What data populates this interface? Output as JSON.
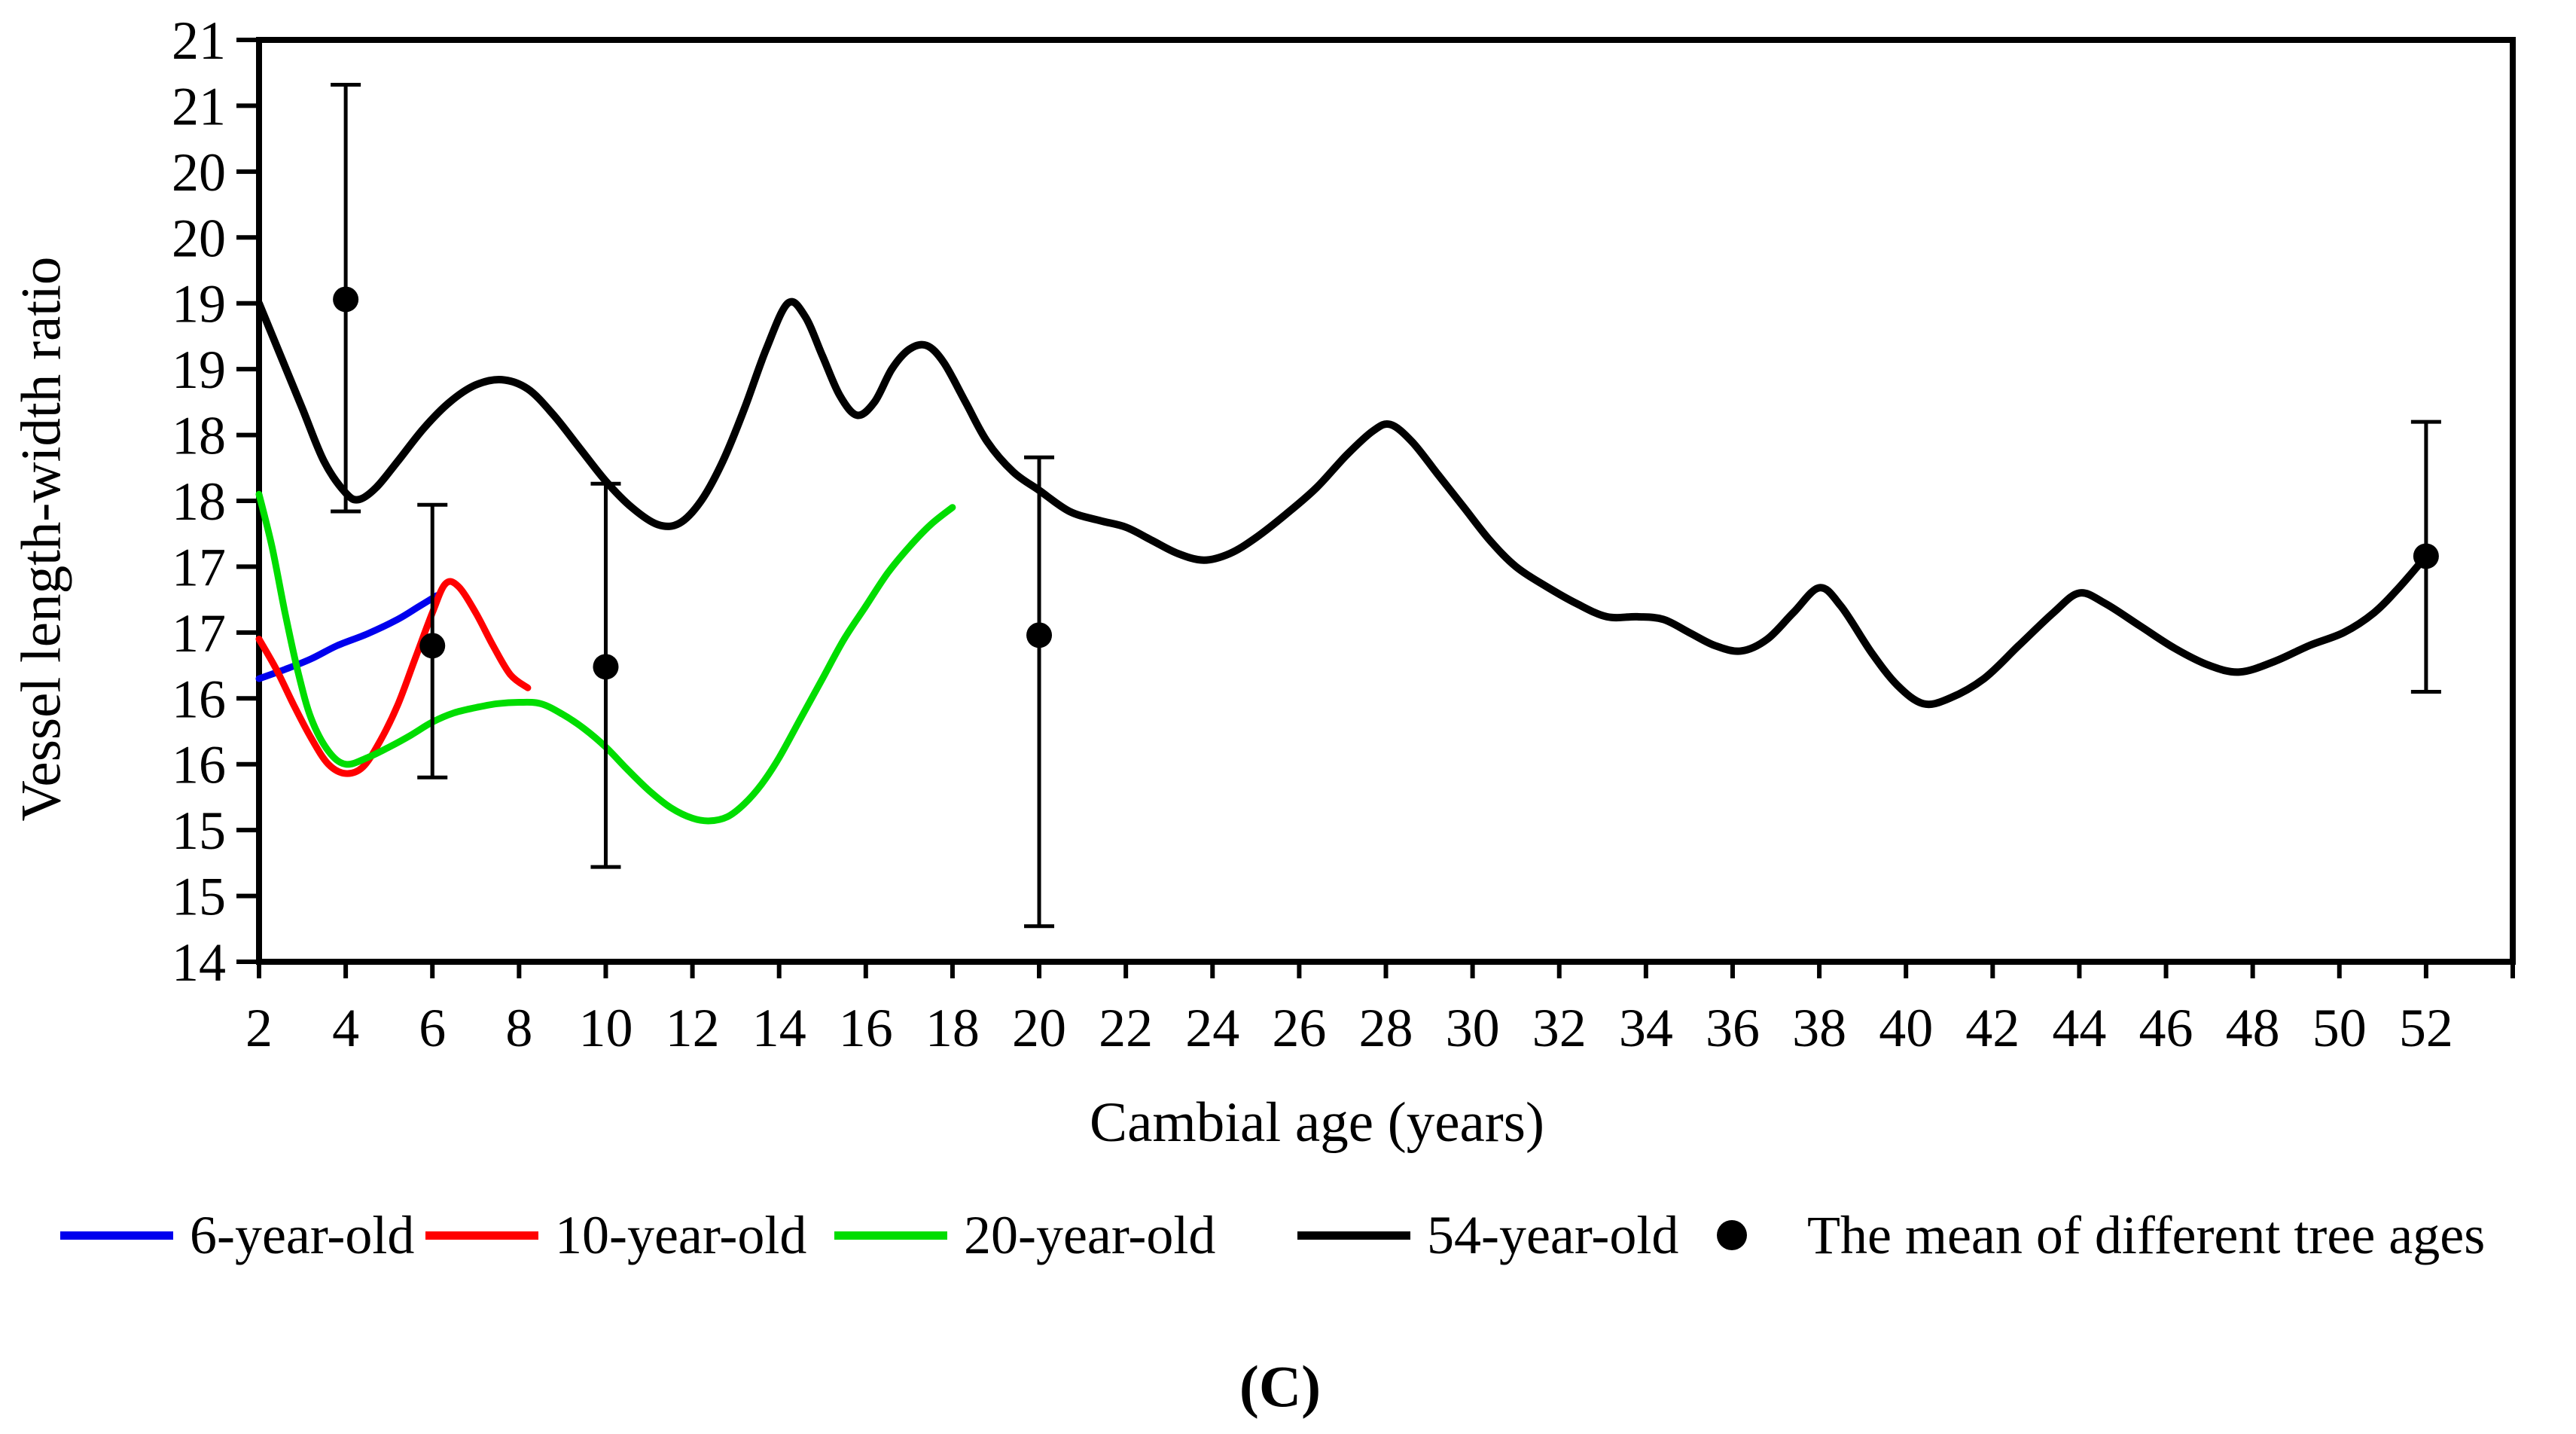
{
  "figure": {
    "caption": "(C)",
    "x_axis": {
      "title": "Cambial age (years)",
      "min": 2,
      "max": 54,
      "tick_interval": 2,
      "tick_labels": [
        "2",
        "4",
        "6",
        "8",
        "10",
        "12",
        "14",
        "16",
        "18",
        "20",
        "22",
        "24",
        "26",
        "28",
        "30",
        "32",
        "34",
        "36",
        "38",
        "40",
        "42",
        "44",
        "46",
        "48",
        "50",
        "52"
      ]
    },
    "y_axis": {
      "title": "Vessel length-width ratio",
      "min": 14,
      "max": 21,
      "tick_interval": 0.5,
      "tick_labels_top_to_bottom": [
        "21",
        "21",
        "20",
        "20",
        "19",
        "19",
        "18",
        "18",
        "17",
        "17",
        "16",
        "16",
        "15",
        "15",
        "14"
      ]
    },
    "legend": [
      {
        "label": "6-year-old",
        "color": "#0000ee",
        "marker": "line"
      },
      {
        "label": "10-year-old",
        "color": "#ff0000",
        "marker": "line"
      },
      {
        "label": "20-year-old",
        "color": "#00dd00",
        "marker": "line"
      },
      {
        "label": "54-year-old",
        "color": "#000000",
        "marker": "line"
      },
      {
        "label": "The mean of different tree ages",
        "color": "#000000",
        "marker": "dot"
      }
    ]
  },
  "colors": {
    "blue": "#0000ee",
    "red": "#ff0000",
    "green": "#00dd00",
    "black": "#000000",
    "background": "#ffffff"
  },
  "chart_data": {
    "type": "line",
    "title": "",
    "xlabel": "Cambial age (years)",
    "ylabel": "Vessel length-width ratio",
    "xlim": [
      2,
      54
    ],
    "ylim": [
      14,
      21
    ],
    "grid": false,
    "legend_position": "bottom",
    "series": [
      {
        "name": "6-year-old",
        "color": "#0000ee",
        "points": [
          [
            2,
            16.15
          ],
          [
            2.6,
            16.22
          ],
          [
            3.2,
            16.3
          ],
          [
            3.8,
            16.4
          ],
          [
            4.5,
            16.49
          ],
          [
            5.2,
            16.6
          ],
          [
            5.7,
            16.7
          ],
          [
            6.1,
            16.78
          ]
        ]
      },
      {
        "name": "10-year-old",
        "color": "#ff0000",
        "points": [
          [
            2,
            16.45
          ],
          [
            2.4,
            16.22
          ],
          [
            2.8,
            15.95
          ],
          [
            3.2,
            15.7
          ],
          [
            3.6,
            15.5
          ],
          [
            4,
            15.43
          ],
          [
            4.4,
            15.48
          ],
          [
            4.8,
            15.68
          ],
          [
            5.2,
            15.95
          ],
          [
            5.6,
            16.3
          ],
          [
            6,
            16.65
          ],
          [
            6.3,
            16.87
          ],
          [
            6.6,
            16.85
          ],
          [
            7,
            16.65
          ],
          [
            7.4,
            16.4
          ],
          [
            7.8,
            16.18
          ],
          [
            8.2,
            16.08
          ]
        ]
      },
      {
        "name": "20-year-old",
        "color": "#00dd00",
        "points": [
          [
            2,
            17.55
          ],
          [
            2.3,
            17.15
          ],
          [
            2.6,
            16.65
          ],
          [
            2.9,
            16.2
          ],
          [
            3.2,
            15.85
          ],
          [
            3.6,
            15.6
          ],
          [
            4,
            15.5
          ],
          [
            4.5,
            15.55
          ],
          [
            5,
            15.63
          ],
          [
            5.5,
            15.72
          ],
          [
            6,
            15.82
          ],
          [
            6.5,
            15.89
          ],
          [
            7,
            15.93
          ],
          [
            7.5,
            15.96
          ],
          [
            8,
            15.97
          ],
          [
            8.5,
            15.96
          ],
          [
            9,
            15.88
          ],
          [
            9.5,
            15.77
          ],
          [
            10,
            15.63
          ],
          [
            10.5,
            15.46
          ],
          [
            11,
            15.3
          ],
          [
            11.5,
            15.17
          ],
          [
            12,
            15.09
          ],
          [
            12.4,
            15.07
          ],
          [
            12.8,
            15.1
          ],
          [
            13.2,
            15.2
          ],
          [
            13.6,
            15.35
          ],
          [
            14,
            15.55
          ],
          [
            14.5,
            15.85
          ],
          [
            15,
            16.15
          ],
          [
            15.5,
            16.45
          ],
          [
            16,
            16.7
          ],
          [
            16.5,
            16.95
          ],
          [
            17,
            17.15
          ],
          [
            17.5,
            17.32
          ],
          [
            18,
            17.45
          ]
        ]
      },
      {
        "name": "54-year-old",
        "color": "#000000",
        "points": [
          [
            2,
            19.0
          ],
          [
            2.5,
            18.6
          ],
          [
            3,
            18.2
          ],
          [
            3.5,
            17.8
          ],
          [
            4,
            17.56
          ],
          [
            4.3,
            17.51
          ],
          [
            4.7,
            17.6
          ],
          [
            5.2,
            17.8
          ],
          [
            5.8,
            18.05
          ],
          [
            6.4,
            18.25
          ],
          [
            7,
            18.38
          ],
          [
            7.6,
            18.42
          ],
          [
            8.2,
            18.35
          ],
          [
            8.8,
            18.15
          ],
          [
            9.4,
            17.9
          ],
          [
            10,
            17.65
          ],
          [
            10.6,
            17.45
          ],
          [
            11.2,
            17.32
          ],
          [
            11.7,
            17.33
          ],
          [
            12.2,
            17.5
          ],
          [
            12.7,
            17.8
          ],
          [
            13.2,
            18.2
          ],
          [
            13.7,
            18.65
          ],
          [
            14.2,
            19.0
          ],
          [
            14.6,
            18.9
          ],
          [
            15,
            18.6
          ],
          [
            15.4,
            18.3
          ],
          [
            15.8,
            18.15
          ],
          [
            16.2,
            18.25
          ],
          [
            16.6,
            18.5
          ],
          [
            17,
            18.65
          ],
          [
            17.4,
            18.68
          ],
          [
            17.8,
            18.55
          ],
          [
            18.3,
            18.25
          ],
          [
            18.8,
            17.95
          ],
          [
            19.4,
            17.72
          ],
          [
            20,
            17.58
          ],
          [
            20.7,
            17.42
          ],
          [
            21.4,
            17.35
          ],
          [
            22,
            17.3
          ],
          [
            22.6,
            17.2
          ],
          [
            23.2,
            17.1
          ],
          [
            23.8,
            17.05
          ],
          [
            24.4,
            17.1
          ],
          [
            25,
            17.22
          ],
          [
            25.7,
            17.4
          ],
          [
            26.4,
            17.6
          ],
          [
            27.1,
            17.85
          ],
          [
            27.7,
            18.03
          ],
          [
            28.1,
            18.08
          ],
          [
            28.6,
            17.95
          ],
          [
            29.2,
            17.7
          ],
          [
            29.8,
            17.45
          ],
          [
            30.4,
            17.2
          ],
          [
            31,
            17.0
          ],
          [
            31.7,
            16.85
          ],
          [
            32.4,
            16.72
          ],
          [
            33.1,
            16.62
          ],
          [
            33.8,
            16.62
          ],
          [
            34.4,
            16.6
          ],
          [
            35,
            16.5
          ],
          [
            35.6,
            16.4
          ],
          [
            36.2,
            16.36
          ],
          [
            36.8,
            16.45
          ],
          [
            37.4,
            16.65
          ],
          [
            38,
            16.84
          ],
          [
            38.5,
            16.7
          ],
          [
            39.2,
            16.35
          ],
          [
            39.8,
            16.1
          ],
          [
            40.4,
            15.96
          ],
          [
            41,
            16.0
          ],
          [
            41.8,
            16.15
          ],
          [
            42.6,
            16.4
          ],
          [
            43.4,
            16.65
          ],
          [
            44,
            16.8
          ],
          [
            44.6,
            16.72
          ],
          [
            45.4,
            16.55
          ],
          [
            46.2,
            16.38
          ],
          [
            47,
            16.25
          ],
          [
            47.7,
            16.2
          ],
          [
            48.5,
            16.28
          ],
          [
            49.3,
            16.4
          ],
          [
            50.1,
            16.5
          ],
          [
            50.8,
            16.65
          ],
          [
            51.4,
            16.85
          ],
          [
            52,
            17.08
          ]
        ]
      }
    ],
    "mean_series": {
      "name": "The mean of different tree ages",
      "color": "#000000",
      "marker": "filled-circle",
      "points": [
        {
          "x": 4,
          "mean": 19.03,
          "err_high": 20.66,
          "err_low": 17.42
        },
        {
          "x": 6,
          "mean": 16.4,
          "err_high": 17.47,
          "err_low": 15.4
        },
        {
          "x": 10,
          "mean": 16.24,
          "err_high": 17.63,
          "err_low": 14.72
        },
        {
          "x": 20,
          "mean": 16.48,
          "err_high": 17.83,
          "err_low": 14.27
        },
        {
          "x": 52,
          "mean": 17.08,
          "err_high": 18.1,
          "err_low": 16.05
        }
      ]
    }
  }
}
